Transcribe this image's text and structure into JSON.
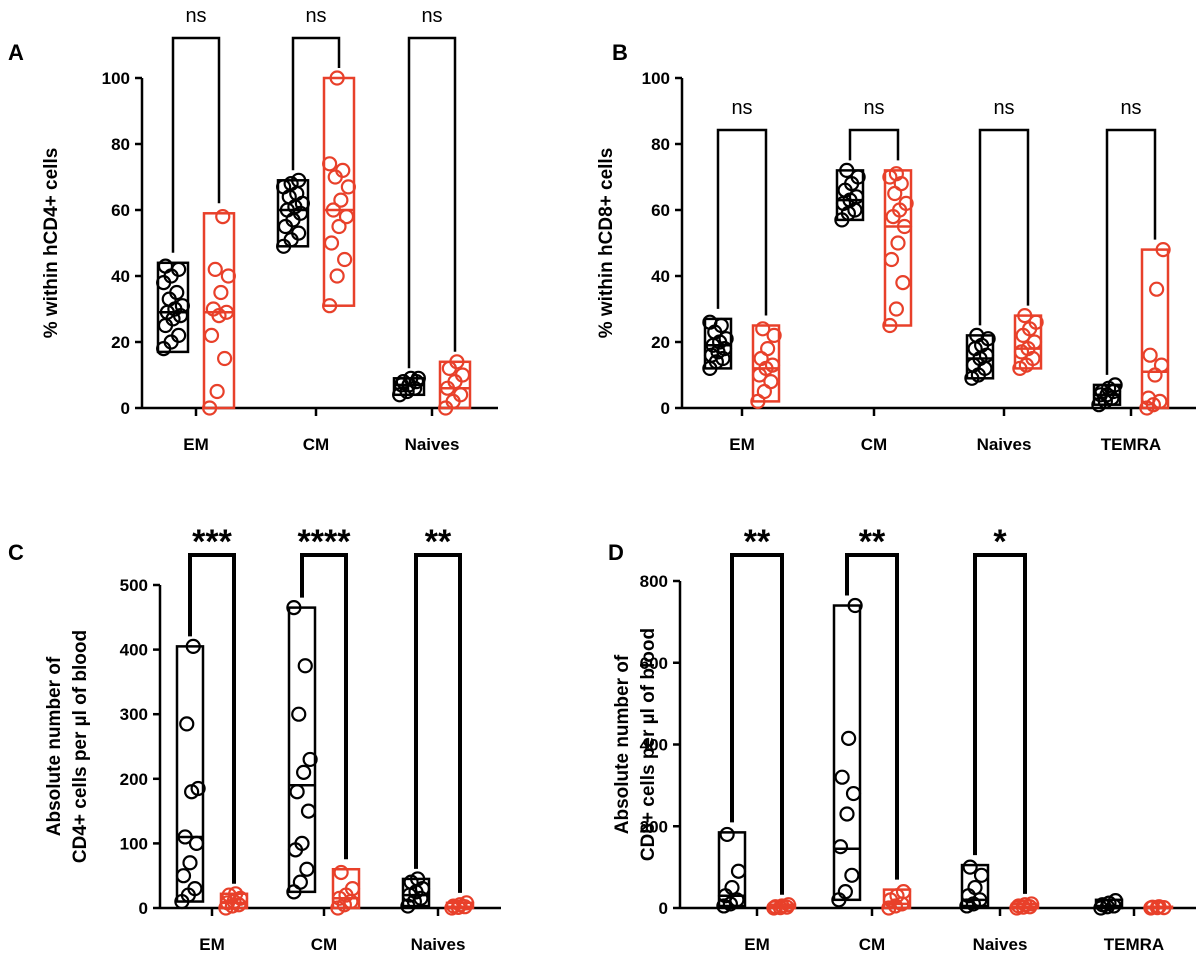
{
  "colors": {
    "group1": "#000000",
    "group2": "#e8402a"
  },
  "chart_data": [
    {
      "panel": "A",
      "type": "box",
      "ylabel": "% within hCD4+ cells",
      "ylim": [
        0,
        100
      ],
      "yticks": [
        0,
        20,
        40,
        60,
        80,
        100
      ],
      "categories": [
        "EM",
        "CM",
        "Naives"
      ],
      "groups": [
        {
          "category": "EM",
          "series": "black",
          "min": 17,
          "median": 29,
          "max": 44,
          "points": [
            18,
            20,
            22,
            25,
            27,
            28,
            29,
            30,
            31,
            33,
            35,
            38,
            40,
            42,
            43
          ]
        },
        {
          "category": "EM",
          "series": "red",
          "min": 0,
          "median": 29,
          "max": 59,
          "points": [
            0,
            5,
            15,
            22,
            28,
            29,
            30,
            35,
            40,
            42,
            58
          ]
        },
        {
          "category": "CM",
          "series": "black",
          "min": 49,
          "median": 60,
          "max": 69,
          "points": [
            49,
            51,
            53,
            55,
            57,
            59,
            60,
            61,
            62,
            64,
            65,
            67,
            68,
            69
          ]
        },
        {
          "category": "CM",
          "series": "red",
          "min": 31,
          "median": 60,
          "max": 100,
          "points": [
            31,
            40,
            45,
            50,
            55,
            58,
            60,
            63,
            67,
            70,
            72,
            74,
            100
          ]
        },
        {
          "category": "Naives",
          "series": "black",
          "min": 4,
          "median": 7,
          "max": 9,
          "points": [
            4,
            5,
            6,
            7,
            7,
            8,
            8,
            9,
            9
          ]
        },
        {
          "category": "Naives",
          "series": "red",
          "min": 0,
          "median": 6,
          "max": 14,
          "points": [
            0,
            2,
            4,
            6,
            8,
            10,
            12,
            14
          ]
        }
      ],
      "significance": [
        "ns",
        "ns",
        "ns"
      ]
    },
    {
      "panel": "B",
      "type": "box",
      "ylabel": "% within hCD8+ cells",
      "ylim": [
        0,
        100
      ],
      "yticks": [
        0,
        20,
        40,
        60,
        80,
        100
      ],
      "categories": [
        "EM",
        "CM",
        "Naives",
        "TEMRA"
      ],
      "groups": [
        {
          "category": "EM",
          "series": "black",
          "min": 12,
          "median": 19,
          "max": 27,
          "points": [
            12,
            14,
            15,
            16,
            17,
            18,
            19,
            20,
            21,
            23,
            25,
            26
          ]
        },
        {
          "category": "EM",
          "series": "red",
          "min": 2,
          "median": 12,
          "max": 25,
          "points": [
            2,
            5,
            8,
            10,
            12,
            13,
            15,
            18,
            22,
            24
          ]
        },
        {
          "category": "CM",
          "series": "black",
          "min": 57,
          "median": 63,
          "max": 72,
          "points": [
            57,
            59,
            60,
            62,
            63,
            64,
            66,
            68,
            70,
            72
          ]
        },
        {
          "category": "CM",
          "series": "red",
          "min": 25,
          "median": 55,
          "max": 72,
          "points": [
            25,
            30,
            38,
            45,
            50,
            55,
            58,
            60,
            62,
            65,
            68,
            70,
            71
          ]
        },
        {
          "category": "Naives",
          "series": "black",
          "min": 9,
          "median": 15,
          "max": 22,
          "points": [
            9,
            10,
            12,
            13,
            15,
            16,
            18,
            19,
            21,
            22
          ]
        },
        {
          "category": "Naives",
          "series": "red",
          "min": 12,
          "median": 18,
          "max": 28,
          "points": [
            12,
            13,
            15,
            17,
            18,
            20,
            22,
            24,
            26,
            28
          ]
        },
        {
          "category": "TEMRA",
          "series": "black",
          "min": 1,
          "median": 4,
          "max": 7,
          "points": [
            1,
            2,
            3,
            4,
            4,
            5,
            5,
            6,
            7
          ]
        },
        {
          "category": "TEMRA",
          "series": "red",
          "min": 0,
          "median": 11,
          "max": 48,
          "points": [
            0,
            1,
            2,
            3,
            10,
            13,
            16,
            36,
            48
          ]
        }
      ],
      "significance": [
        "ns",
        "ns",
        "ns",
        "ns"
      ]
    },
    {
      "panel": "C",
      "type": "box",
      "ylabel_lines": [
        "Absolute number of",
        "CD4+ cells per µl of blood"
      ],
      "ylim": [
        0,
        500
      ],
      "yticks": [
        0,
        100,
        200,
        300,
        400,
        500
      ],
      "categories": [
        "EM",
        "CM",
        "Naives"
      ],
      "groups": [
        {
          "category": "EM",
          "series": "black",
          "min": 10,
          "median": 110,
          "max": 405,
          "points": [
            10,
            20,
            30,
            50,
            70,
            100,
            110,
            180,
            185,
            285,
            405
          ]
        },
        {
          "category": "EM",
          "series": "red",
          "min": 0,
          "median": 8,
          "max": 22,
          "points": [
            0,
            3,
            5,
            8,
            10,
            15,
            20,
            22
          ]
        },
        {
          "category": "CM",
          "series": "black",
          "min": 25,
          "median": 190,
          "max": 465,
          "points": [
            25,
            40,
            60,
            90,
            100,
            150,
            180,
            210,
            230,
            300,
            375,
            465
          ]
        },
        {
          "category": "CM",
          "series": "red",
          "min": 0,
          "median": 15,
          "max": 60,
          "points": [
            0,
            5,
            10,
            15,
            20,
            30,
            55
          ]
        },
        {
          "category": "Naives",
          "series": "black",
          "min": 3,
          "median": 20,
          "max": 45,
          "points": [
            3,
            10,
            15,
            20,
            25,
            30,
            40,
            45
          ]
        },
        {
          "category": "Naives",
          "series": "red",
          "min": 0,
          "median": 2,
          "max": 8,
          "points": [
            0,
            1,
            2,
            3,
            5,
            8
          ]
        }
      ],
      "significance": [
        "***",
        "****",
        "**"
      ]
    },
    {
      "panel": "D",
      "type": "box",
      "ylabel_lines": [
        "Absolute number of",
        "CD8+ cells per µl of blood"
      ],
      "ylim": [
        0,
        800
      ],
      "yticks": [
        0,
        200,
        400,
        600,
        800
      ],
      "categories": [
        "EM",
        "CM",
        "Naives",
        "TEMRA"
      ],
      "groups": [
        {
          "category": "EM",
          "series": "black",
          "min": 5,
          "median": 30,
          "max": 185,
          "points": [
            5,
            10,
            20,
            30,
            50,
            90,
            180
          ]
        },
        {
          "category": "EM",
          "series": "red",
          "min": 0,
          "median": 2,
          "max": 8,
          "points": [
            0,
            1,
            2,
            3,
            5,
            8
          ]
        },
        {
          "category": "CM",
          "series": "black",
          "min": 20,
          "median": 145,
          "max": 740,
          "points": [
            20,
            40,
            80,
            150,
            230,
            280,
            320,
            415,
            740
          ]
        },
        {
          "category": "CM",
          "series": "red",
          "min": 0,
          "median": 10,
          "max": 45,
          "points": [
            0,
            5,
            10,
            20,
            30,
            40
          ]
        },
        {
          "category": "Naives",
          "series": "black",
          "min": 5,
          "median": 20,
          "max": 105,
          "points": [
            5,
            10,
            20,
            30,
            50,
            80,
            100
          ]
        },
        {
          "category": "Naives",
          "series": "red",
          "min": 0,
          "median": 3,
          "max": 10,
          "points": [
            0,
            2,
            3,
            5,
            8,
            10
          ]
        },
        {
          "category": "TEMRA",
          "series": "black",
          "min": 0,
          "median": 5,
          "max": 20,
          "points": [
            0,
            3,
            5,
            8,
            12,
            18
          ]
        },
        {
          "category": "TEMRA",
          "series": "red",
          "min": 0,
          "median": 1,
          "max": 3,
          "points": [
            0,
            1,
            1,
            2,
            3
          ]
        }
      ],
      "significance": [
        "**",
        "**",
        "*",
        ""
      ]
    }
  ]
}
